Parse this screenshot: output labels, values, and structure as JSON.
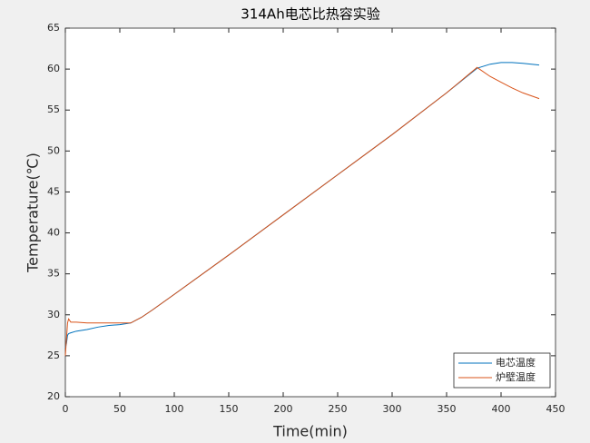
{
  "chart_data": {
    "type": "line",
    "title": "314Ah电芯比热容实验",
    "x_label": "Time(min)",
    "y_label": "Temperature(℃)",
    "x": [
      0,
      1,
      2,
      3,
      5,
      10,
      20,
      30,
      40,
      50,
      60,
      70,
      80,
      100,
      150,
      200,
      250,
      300,
      350,
      378,
      390,
      400,
      410,
      420,
      435
    ],
    "series": [
      {
        "name": "电芯温度",
        "color": "#0072bd",
        "values": [
          26,
          26.5,
          27.5,
          27.7,
          27.8,
          28,
          28.2,
          28.5,
          28.7,
          28.8,
          29,
          29.7,
          30.6,
          32.5,
          37.3,
          42.2,
          47.1,
          52,
          57.1,
          60.1,
          60.6,
          60.8,
          60.8,
          60.7,
          60.5
        ]
      },
      {
        "name": "炉壁温度",
        "color": "#d95319",
        "values": [
          25,
          27,
          29,
          29.5,
          29.1,
          29.1,
          29,
          29,
          29,
          29,
          29,
          29.7,
          30.6,
          32.5,
          37.3,
          42.2,
          47.1,
          52,
          57.1,
          60.2,
          59.1,
          58.4,
          57.7,
          57.1,
          56.4
        ]
      }
    ],
    "xlim": [
      0,
      450
    ],
    "xticks": [
      0,
      50,
      100,
      150,
      200,
      250,
      300,
      350,
      400,
      450
    ],
    "ylim": [
      20,
      65
    ],
    "yticks": [
      20,
      25,
      30,
      35,
      40,
      45,
      50,
      55,
      60,
      65
    ],
    "legend": "bottom-right",
    "grid": false
  }
}
